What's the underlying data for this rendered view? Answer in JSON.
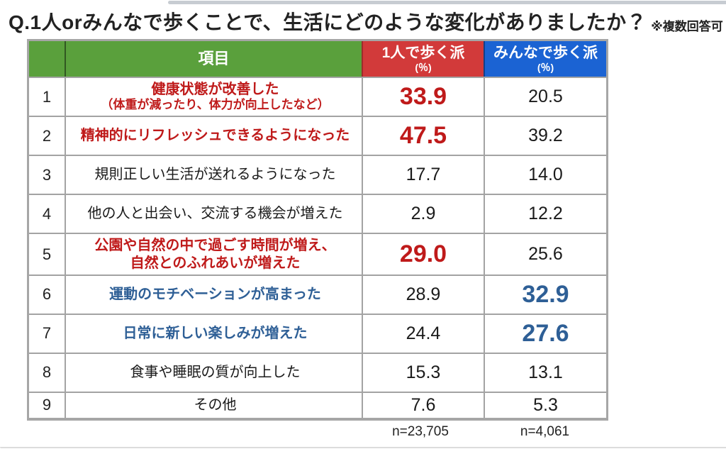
{
  "title": {
    "question": "Q.1人orみんなで歩くことで、生活にどのような変化がありましたか？",
    "note": "※複数回答可"
  },
  "colors": {
    "header_green": "#5aa03c",
    "header_red": "#d23a3a",
    "header_blue": "#1b63d3",
    "emphasis_red": "#bf1a1a",
    "emphasis_blue": "#2e5f96"
  },
  "table": {
    "headers": {
      "item": "項目",
      "solo": "1人で歩く派",
      "solo_unit": "(％)",
      "group": "みんなで歩く派",
      "group_unit": "(％)"
    },
    "rows": [
      {
        "no": "1",
        "item": "健康状態が改善した",
        "item2": "（体重が減ったり、体力が向上したなど）",
        "item2_small": true,
        "item_color": "red",
        "solo": "33.9",
        "solo_emphasis": "red",
        "group": "20.5",
        "group_emphasis": "none"
      },
      {
        "no": "2",
        "item": "精神的にリフレッシュできるようになった",
        "item_color": "red",
        "solo": "47.5",
        "solo_emphasis": "red",
        "group": "39.2",
        "group_emphasis": "none"
      },
      {
        "no": "3",
        "item": "規則正しい生活が送れるようになった",
        "item_color": "black",
        "solo": "17.7",
        "solo_emphasis": "none",
        "group": "14.0",
        "group_emphasis": "none"
      },
      {
        "no": "4",
        "item": "他の人と出会い、交流する機会が増えた",
        "item_color": "black",
        "solo": "2.9",
        "solo_emphasis": "none",
        "group": "12.2",
        "group_emphasis": "none"
      },
      {
        "no": "5",
        "item": "公園や自然の中で過ごす時間が増え、",
        "item2": "自然とのふれあいが増えた",
        "item2_small": false,
        "item_color": "red",
        "solo": "29.0",
        "solo_emphasis": "red",
        "group": "25.6",
        "group_emphasis": "none"
      },
      {
        "no": "6",
        "item": "運動のモチベーションが高まった",
        "item_color": "blue",
        "solo": "28.9",
        "solo_emphasis": "none",
        "group": "32.9",
        "group_emphasis": "blue"
      },
      {
        "no": "7",
        "item": "日常に新しい楽しみが増えた",
        "item_color": "blue",
        "solo": "24.4",
        "solo_emphasis": "none",
        "group": "27.6",
        "group_emphasis": "blue"
      },
      {
        "no": "8",
        "item": "食事や睡眠の質が向上した",
        "item_color": "black",
        "solo": "15.3",
        "solo_emphasis": "none",
        "group": "13.1",
        "group_emphasis": "none"
      },
      {
        "no": "9",
        "item": "その他",
        "item_color": "black",
        "solo": "7.6",
        "solo_emphasis": "none",
        "group": "5.3",
        "group_emphasis": "none",
        "compact": true
      }
    ],
    "footer": {
      "solo_n": "n=23,705",
      "group_n": "n=4,061"
    }
  },
  "chart_data": {
    "type": "table",
    "title": "Q.1人orみんなで歩くことで、生活にどのような変化がありましたか？（※複数回答可）",
    "categories": [
      "健康状態が改善した（体重が減ったり、体力が向上したなど）",
      "精神的にリフレッシュできるようになった",
      "規則正しい生活が送れるようになった",
      "他の人と出会い、交流する機会が増えた",
      "公園や自然の中で過ごす時間が増え、自然とのふれあいが増えた",
      "運動のモチベーションが高まった",
      "日常に新しい楽しみが増えた",
      "食事や睡眠の質が向上した",
      "その他"
    ],
    "series": [
      {
        "name": "1人で歩く派 (%)",
        "n": "n=23,705",
        "values": [
          33.9,
          47.5,
          17.7,
          2.9,
          29.0,
          28.9,
          24.4,
          15.3,
          7.6
        ]
      },
      {
        "name": "みんなで歩く派 (%)",
        "n": "n=4,061",
        "values": [
          20.5,
          39.2,
          14.0,
          12.2,
          25.6,
          32.9,
          27.6,
          13.1,
          5.3
        ]
      }
    ],
    "highlights": {
      "1人で歩く派 (%)": [
        33.9,
        47.5,
        29.0
      ],
      "みんなで歩く派 (%)": [
        32.9,
        27.6
      ]
    }
  }
}
